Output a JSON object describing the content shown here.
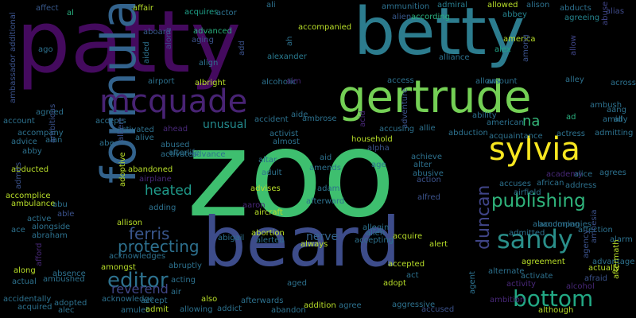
{
  "word_cloud": {
    "background": "#000000",
    "palette": [
      "#440154",
      "#482878",
      "#3e4a89",
      "#31688e",
      "#26828e",
      "#1f9e89",
      "#35b779",
      "#6ece58",
      "#b5de2b",
      "#fde725"
    ],
    "words": [
      {
        "text": "zoo",
        "weight": 100,
        "color": "#3ebf6f"
      },
      {
        "text": "patty",
        "weight": 92,
        "color": "#440a5e"
      },
      {
        "text": "betty",
        "weight": 80,
        "color": "#2c7c8e"
      },
      {
        "text": "beard",
        "weight": 72,
        "color": "#3d4c8a"
      },
      {
        "text": "gertrude",
        "weight": 50,
        "color": "#74d055"
      },
      {
        "text": "formula",
        "weight": 42,
        "color": "#33638d"
      },
      {
        "text": "mcquade",
        "weight": 40,
        "color": "#482374"
      },
      {
        "text": "sylvia",
        "weight": 36,
        "color": "#f7e620"
      },
      {
        "text": "sandy",
        "weight": 30,
        "color": "#2a8f8a"
      },
      {
        "text": "bottom",
        "weight": 27,
        "color": "#22a884"
      },
      {
        "text": "editor",
        "weight": 24,
        "color": "#2d718e"
      },
      {
        "text": "publishing",
        "weight": 22,
        "color": "#2fb47c"
      },
      {
        "text": "protecting",
        "weight": 20,
        "color": "#2d708e"
      },
      {
        "text": "ferris",
        "weight": 20,
        "color": "#39568c"
      },
      {
        "text": "duncan",
        "weight": 18,
        "color": "#404588"
      },
      {
        "text": "heated",
        "weight": 17,
        "color": "#1f9a8a"
      },
      {
        "text": "reverend",
        "weight": 16,
        "color": "#404788"
      },
      {
        "text": "na",
        "weight": 16,
        "color": "#35b779"
      },
      {
        "text": "unusual",
        "weight": 14,
        "color": "#238a8d"
      },
      {
        "text": "nerve",
        "weight": 14,
        "color": "#33638d"
      },
      {
        "text": "affect",
        "weight": 5,
        "color": "#38598c"
      },
      {
        "text": "al",
        "weight": 5,
        "color": "#29af7f"
      },
      {
        "text": "affair",
        "weight": 5,
        "color": "#b8de29"
      },
      {
        "text": "acquires",
        "weight": 5,
        "color": "#1fa088"
      },
      {
        "text": "actor",
        "weight": 5,
        "color": "#2d718e"
      },
      {
        "text": "ali",
        "weight": 5,
        "color": "#2d718e"
      },
      {
        "text": "ammunition",
        "weight": 5,
        "color": "#2d708e"
      },
      {
        "text": "admiral",
        "weight": 5,
        "color": "#287c8e"
      },
      {
        "text": "allowed",
        "weight": 5,
        "color": "#b8de29"
      },
      {
        "text": "alison",
        "weight": 5,
        "color": "#2d718e"
      },
      {
        "text": "abducts",
        "weight": 5,
        "color": "#2d708e"
      },
      {
        "text": "alien",
        "weight": 5,
        "color": "#38598c"
      },
      {
        "text": "according",
        "weight": 5,
        "color": "#2ab07f"
      },
      {
        "text": "abbey",
        "weight": 5,
        "color": "#26828e"
      },
      {
        "text": "agreeing",
        "weight": 5,
        "color": "#25848e"
      },
      {
        "text": "accompanied",
        "weight": 5,
        "color": "#b8de29"
      },
      {
        "text": "aboard",
        "weight": 5,
        "color": "#38598c"
      },
      {
        "text": "advanced",
        "weight": 5,
        "color": "#2ab07f"
      },
      {
        "text": "aging",
        "weight": 5,
        "color": "#3b528b"
      },
      {
        "text": "ago",
        "weight": 5,
        "color": "#2d708e"
      },
      {
        "text": "ah",
        "weight": 5,
        "color": "#2d718e"
      },
      {
        "text": "alexander",
        "weight": 5,
        "color": "#29798e"
      },
      {
        "text": "america",
        "weight": 5,
        "color": "#b8de29"
      },
      {
        "text": "alex",
        "weight": 5,
        "color": "#20a386"
      },
      {
        "text": "alliance",
        "weight": 5,
        "color": "#2d718e"
      },
      {
        "text": "among",
        "weight": 5,
        "color": "#3b528b"
      },
      {
        "text": "allow",
        "weight": 5,
        "color": "#404588"
      },
      {
        "text": "abuse",
        "weight": 5,
        "color": "#404588"
      },
      {
        "text": "alias",
        "weight": 5,
        "color": "#3e4a89"
      },
      {
        "text": "aang",
        "weight": 5,
        "color": "#2d718e"
      },
      {
        "text": "amid",
        "weight": 5,
        "color": "#2d718e"
      },
      {
        "text": "ally",
        "weight": 5,
        "color": "#2d718e"
      },
      {
        "text": "ad",
        "weight": 5,
        "color": "#2ab07f"
      },
      {
        "text": "across",
        "weight": 5,
        "color": "#2d718e"
      },
      {
        "text": "alley",
        "weight": 5,
        "color": "#2d718e"
      },
      {
        "text": "amount",
        "weight": 5,
        "color": "#2d718e"
      },
      {
        "text": "allows",
        "weight": 5,
        "color": "#2d718e"
      },
      {
        "text": "access",
        "weight": 5,
        "color": "#2d718e"
      },
      {
        "text": "ambush",
        "weight": 5,
        "color": "#2d718e"
      },
      {
        "text": "airport",
        "weight": 5,
        "color": "#2d718e"
      },
      {
        "text": "albright",
        "weight": 5,
        "color": "#b8de29"
      },
      {
        "text": "alcoholic",
        "weight": 5,
        "color": "#2d718e"
      },
      {
        "text": "aim",
        "weight": 5,
        "color": "#482878"
      },
      {
        "text": "align",
        "weight": 5,
        "color": "#2d718e"
      },
      {
        "text": "aided",
        "weight": 5,
        "color": "#2d718e"
      },
      {
        "text": "add",
        "weight": 5,
        "color": "#3b528b"
      },
      {
        "text": "alone",
        "weight": 5,
        "color": "#3e4a89"
      },
      {
        "text": "ambassador",
        "weight": 5,
        "color": "#3b528b"
      },
      {
        "text": "additional",
        "weight": 5,
        "color": "#3b528b"
      },
      {
        "text": "agreed",
        "weight": 5,
        "color": "#2d718e"
      },
      {
        "text": "account",
        "weight": 5,
        "color": "#2d718e"
      },
      {
        "text": "accompany",
        "weight": 5,
        "color": "#2d718e"
      },
      {
        "text": "advice",
        "weight": 5,
        "color": "#2d718e"
      },
      {
        "text": "abby",
        "weight": 5,
        "color": "#2d718e"
      },
      {
        "text": "alan",
        "weight": 5,
        "color": "#2d718e"
      },
      {
        "text": "accepts",
        "weight": 5,
        "color": "#2d718e"
      },
      {
        "text": "activated",
        "weight": 5,
        "color": "#2d718e"
      },
      {
        "text": "ahead",
        "weight": 5,
        "color": "#482878"
      },
      {
        "text": "alive",
        "weight": 5,
        "color": "#2d718e"
      },
      {
        "text": "abe",
        "weight": 5,
        "color": "#2d718e"
      },
      {
        "text": "albert",
        "weight": 5,
        "color": "#3b528b"
      },
      {
        "text": "abused",
        "weight": 5,
        "color": "#2d718e"
      },
      {
        "text": "activates",
        "weight": 5,
        "color": "#2d718e"
      },
      {
        "text": "advance",
        "weight": 5,
        "color": "#2d718e"
      },
      {
        "text": "accident",
        "weight": 5,
        "color": "#2d718e"
      },
      {
        "text": "aide",
        "weight": 5,
        "color": "#2d718e"
      },
      {
        "text": "ambrose",
        "weight": 5,
        "color": "#2d718e"
      },
      {
        "text": "almost",
        "weight": 5,
        "color": "#2d718e"
      },
      {
        "text": "activist",
        "weight": 5,
        "color": "#2d718e"
      },
      {
        "text": "acid",
        "weight": 5,
        "color": "#482878"
      },
      {
        "text": "adventure",
        "weight": 5,
        "color": "#3b528b"
      },
      {
        "text": "allie",
        "weight": 5,
        "color": "#2d718e"
      },
      {
        "text": "accusing",
        "weight": 5,
        "color": "#2d718e"
      },
      {
        "text": "abduction",
        "weight": 5,
        "color": "#2d718e"
      },
      {
        "text": "ability",
        "weight": 5,
        "color": "#2d718e"
      },
      {
        "text": "american",
        "weight": 5,
        "color": "#2d718e"
      },
      {
        "text": "acquaintance",
        "weight": 5,
        "color": "#2d718e"
      },
      {
        "text": "actress",
        "weight": 5,
        "color": "#2d718e"
      },
      {
        "text": "admitting",
        "weight": 5,
        "color": "#2d718e"
      },
      {
        "text": "household",
        "weight": 5,
        "color": "#b8de29"
      },
      {
        "text": "alpha",
        "weight": 5,
        "color": "#3b528b"
      },
      {
        "text": "achieve",
        "weight": 5,
        "color": "#2d718e"
      },
      {
        "text": "alter",
        "weight": 5,
        "color": "#2d718e"
      },
      {
        "text": "abusive",
        "weight": 5,
        "color": "#2d718e"
      },
      {
        "text": "action",
        "weight": 5,
        "color": "#3b528b"
      },
      {
        "text": "aid",
        "weight": 5,
        "color": "#2d718e"
      },
      {
        "text": "amends",
        "weight": 5,
        "color": "#2d718e"
      },
      {
        "text": "age",
        "weight": 5,
        "color": "#2d718e"
      },
      {
        "text": "altar",
        "weight": 5,
        "color": "#2d718e"
      },
      {
        "text": "adult",
        "weight": 5,
        "color": "#2d718e"
      },
      {
        "text": "academy",
        "weight": 5,
        "color": "#482878"
      },
      {
        "text": "alice",
        "weight": 5,
        "color": "#2d718e"
      },
      {
        "text": "agrees",
        "weight": 5,
        "color": "#2d718e"
      },
      {
        "text": "african",
        "weight": 5,
        "color": "#2d718e"
      },
      {
        "text": "address",
        "weight": 5,
        "color": "#2d718e"
      },
      {
        "text": "accuses",
        "weight": 5,
        "color": "#2d718e"
      },
      {
        "text": "airfield",
        "weight": 5,
        "color": "#2d718e"
      },
      {
        "text": "abandoned",
        "weight": 5,
        "color": "#b8de29"
      },
      {
        "text": "afterlife",
        "weight": 5,
        "color": "#2d718e"
      },
      {
        "text": "airplane",
        "weight": 5,
        "color": "#482878"
      },
      {
        "text": "adoptive",
        "weight": 5,
        "color": "#b8de29"
      },
      {
        "text": "ambitious",
        "weight": 5,
        "color": "#3b528b"
      },
      {
        "text": "abducted",
        "weight": 5,
        "color": "#b8de29"
      },
      {
        "text": "admits",
        "weight": 5,
        "color": "#3b528b"
      },
      {
        "text": "accomplice",
        "weight": 5,
        "color": "#b8de29"
      },
      {
        "text": "ambulance",
        "weight": 5,
        "color": "#b8de29"
      },
      {
        "text": "advises",
        "weight": 5,
        "color": "#b8de29"
      },
      {
        "text": "adam",
        "weight": 5,
        "color": "#2d718e"
      },
      {
        "text": "alfred",
        "weight": 5,
        "color": "#3b528b"
      },
      {
        "text": "abu",
        "weight": 5,
        "color": "#2d718e"
      },
      {
        "text": "adding",
        "weight": 5,
        "color": "#2d718e"
      },
      {
        "text": "aaron",
        "weight": 5,
        "color": "#482878"
      },
      {
        "text": "afterward",
        "weight": 5,
        "color": "#2d718e"
      },
      {
        "text": "aircraft",
        "weight": 5,
        "color": "#b8de29"
      },
      {
        "text": "abandoning",
        "weight": 5,
        "color": "#2d718e"
      },
      {
        "text": "accompanies",
        "weight": 5,
        "color": "#2d718e"
      },
      {
        "text": "admitted",
        "weight": 5,
        "color": "#2d718e"
      },
      {
        "text": "affection",
        "weight": 5,
        "color": "#2d718e"
      },
      {
        "text": "amnesia",
        "weight": 5,
        "color": "#3b528b"
      },
      {
        "text": "alarm",
        "weight": 5,
        "color": "#2d718e"
      },
      {
        "text": "active",
        "weight": 5,
        "color": "#2d718e"
      },
      {
        "text": "alongside",
        "weight": 5,
        "color": "#2d718e"
      },
      {
        "text": "able",
        "weight": 5,
        "color": "#3b528b"
      },
      {
        "text": "allison",
        "weight": 5,
        "color": "#b8de29"
      },
      {
        "text": "ace",
        "weight": 5,
        "color": "#2d718e"
      },
      {
        "text": "abraham",
        "weight": 5,
        "color": "#2d718e"
      },
      {
        "text": "abortion",
        "weight": 5,
        "color": "#b8de29"
      },
      {
        "text": "allegin",
        "weight": 5,
        "color": "#2d718e"
      },
      {
        "text": "allen",
        "weight": 5,
        "color": "#2d718e"
      },
      {
        "text": "acquire",
        "weight": 5,
        "color": "#b8de29"
      },
      {
        "text": "abigail",
        "weight": 5,
        "color": "#2d718e"
      },
      {
        "text": "alerted",
        "weight": 5,
        "color": "#2d718e"
      },
      {
        "text": "always",
        "weight": 5,
        "color": "#b8de29"
      },
      {
        "text": "accepting",
        "weight": 5,
        "color": "#2d718e"
      },
      {
        "text": "alert",
        "weight": 5,
        "color": "#b8de29"
      },
      {
        "text": "afford",
        "weight": 5,
        "color": "#482878"
      },
      {
        "text": "acknowledges",
        "weight": 5,
        "color": "#2d718e"
      },
      {
        "text": "abruptly",
        "weight": 5,
        "color": "#2d718e"
      },
      {
        "text": "amongst",
        "weight": 5,
        "color": "#b8de29"
      },
      {
        "text": "along",
        "weight": 5,
        "color": "#b8de29"
      },
      {
        "text": "absence",
        "weight": 5,
        "color": "#2d718e"
      },
      {
        "text": "ambushed",
        "weight": 5,
        "color": "#2d718e"
      },
      {
        "text": "actual",
        "weight": 5,
        "color": "#2d718e"
      },
      {
        "text": "accepted",
        "weight": 5,
        "color": "#b8de29"
      },
      {
        "text": "act",
        "weight": 5,
        "color": "#2d718e"
      },
      {
        "text": "adopt",
        "weight": 5,
        "color": "#b8de29"
      },
      {
        "text": "agreement",
        "weight": 5,
        "color": "#b8de29"
      },
      {
        "text": "advantage",
        "weight": 5,
        "color": "#2d718e"
      },
      {
        "text": "agency",
        "weight": 5,
        "color": "#3b528b"
      },
      {
        "text": "actually",
        "weight": 5,
        "color": "#b8de29"
      },
      {
        "text": "alternate",
        "weight": 5,
        "color": "#2d718e"
      },
      {
        "text": "activate",
        "weight": 5,
        "color": "#2d718e"
      },
      {
        "text": "afraid",
        "weight": 5,
        "color": "#3b528b"
      },
      {
        "text": "aftermath",
        "weight": 5,
        "color": "#b8de29"
      },
      {
        "text": "activity",
        "weight": 5,
        "color": "#482878"
      },
      {
        "text": "alcohol",
        "weight": 5,
        "color": "#482878"
      },
      {
        "text": "acting",
        "weight": 5,
        "color": "#2d718e"
      },
      {
        "text": "aged",
        "weight": 5,
        "color": "#2d718e"
      },
      {
        "text": "accidentally",
        "weight": 5,
        "color": "#2d718e"
      },
      {
        "text": "adopted",
        "weight": 5,
        "color": "#2d718e"
      },
      {
        "text": "acknowledge",
        "weight": 5,
        "color": "#2d718e"
      },
      {
        "text": "accept",
        "weight": 5,
        "color": "#2d718e"
      },
      {
        "text": "air",
        "weight": 5,
        "color": "#2d718e"
      },
      {
        "text": "also",
        "weight": 5,
        "color": "#b8de29"
      },
      {
        "text": "acquired",
        "weight": 5,
        "color": "#2d718e"
      },
      {
        "text": "alec",
        "weight": 5,
        "color": "#2d718e"
      },
      {
        "text": "amulet",
        "weight": 5,
        "color": "#2d718e"
      },
      {
        "text": "admit",
        "weight": 5,
        "color": "#b8de29"
      },
      {
        "text": "allowing",
        "weight": 5,
        "color": "#2d718e"
      },
      {
        "text": "addict",
        "weight": 5,
        "color": "#2d718e"
      },
      {
        "text": "afterwards",
        "weight": 5,
        "color": "#2d718e"
      },
      {
        "text": "abandon",
        "weight": 5,
        "color": "#2d718e"
      },
      {
        "text": "addition",
        "weight": 5,
        "color": "#b8de29"
      },
      {
        "text": "agree",
        "weight": 5,
        "color": "#2d718e"
      },
      {
        "text": "aggressive",
        "weight": 5,
        "color": "#2d718e"
      },
      {
        "text": "accused",
        "weight": 5,
        "color": "#3b528b"
      },
      {
        "text": "agent",
        "weight": 5,
        "color": "#2d718e"
      },
      {
        "text": "ambition",
        "weight": 5,
        "color": "#482878"
      },
      {
        "text": "although",
        "weight": 5,
        "color": "#b8de29"
      }
    ]
  }
}
